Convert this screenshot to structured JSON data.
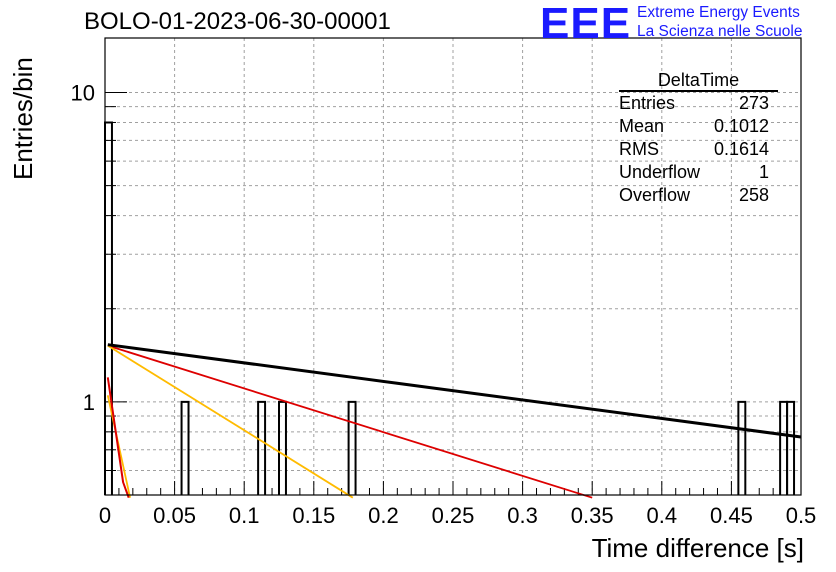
{
  "header": {
    "title": "BOLO-01-2023-06-30-00001",
    "logo": "EEE",
    "org_line1": "Extreme Energy Events",
    "org_line2": "La Scienza nelle Scuole"
  },
  "stats": {
    "name": "DeltaTime",
    "rows": [
      {
        "label": "Entries",
        "value": "273"
      },
      {
        "label": "Mean",
        "value": "0.1012"
      },
      {
        "label": "RMS",
        "value": "0.1614"
      },
      {
        "label": "Underflow",
        "value": "1"
      },
      {
        "label": "Overflow",
        "value": "258"
      }
    ]
  },
  "chart_data": {
    "type": "bar",
    "xlabel": "Time difference [s]",
    "ylabel": "Entries/bin",
    "xlim": [
      0,
      0.5
    ],
    "ylim": [
      0.5,
      15
    ],
    "y_scale": "log",
    "grid": true,
    "x_ticks": [
      "0",
      "0.05",
      "0.1",
      "0.15",
      "0.2",
      "0.25",
      "0.3",
      "0.35",
      "0.4",
      "0.45",
      "0.5"
    ],
    "y_ticks": [
      "1",
      "10"
    ],
    "bin_width": 0.005,
    "histogram": [
      {
        "x0": 0.0,
        "value": 8
      },
      {
        "x0": 0.055,
        "value": 1
      },
      {
        "x0": 0.11,
        "value": 1
      },
      {
        "x0": 0.125,
        "value": 1
      },
      {
        "x0": 0.175,
        "value": 1
      },
      {
        "x0": 0.455,
        "value": 1
      },
      {
        "x0": 0.485,
        "value": 1
      },
      {
        "x0": 0.49,
        "value": 1
      }
    ],
    "colors": {
      "hist": "#000000",
      "red": "#dd0000",
      "orange": "#ffbb00",
      "black_fit": "#000000"
    },
    "fits": [
      {
        "color": "red",
        "width": 1.8,
        "points": [
          [
            0.002,
            1.52
          ],
          [
            0.35,
            0.49
          ]
        ]
      },
      {
        "color": "orange",
        "width": 1.8,
        "points": [
          [
            0.002,
            1.52
          ],
          [
            0.178,
            0.49
          ]
        ]
      },
      {
        "color": "black_fit",
        "width": 3,
        "points": [
          [
            0.002,
            1.53
          ],
          [
            0.5,
            0.77
          ]
        ]
      },
      {
        "color": "orange",
        "width": 1.8,
        "points": [
          [
            0.002,
            1.05
          ],
          [
            0.018,
            0.49
          ]
        ]
      },
      {
        "color": "red",
        "width": 2,
        "points": [
          [
            0.002,
            1.2
          ],
          [
            0.013,
            0.55
          ],
          [
            0.017,
            0.49
          ]
        ]
      }
    ]
  }
}
